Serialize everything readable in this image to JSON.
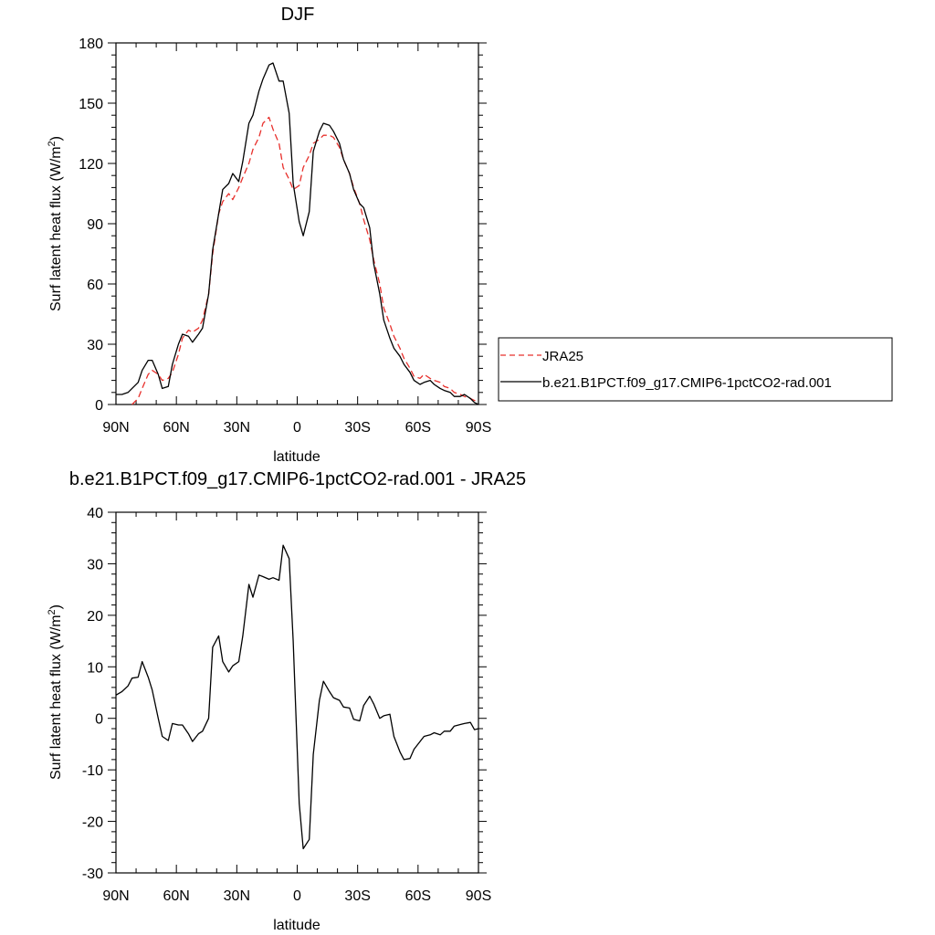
{
  "colors": {
    "jra25": "#e8302c",
    "model": "#000000",
    "axis": "#000000",
    "legend_border": "#000000"
  },
  "chart_data": [
    {
      "type": "line",
      "title": "DJF",
      "xlabel": "latitude",
      "ylabel": "Surf latent heat flux (W/m",
      "ylabel_sup": "2",
      "ylabel_close": ")",
      "xlim": [
        90,
        -90
      ],
      "ylim": [
        0,
        180
      ],
      "xticks": [
        90,
        60,
        30,
        0,
        -30,
        -60,
        -90
      ],
      "xtick_labels": [
        "90N",
        "60N",
        "30N",
        "0",
        "30S",
        "60S",
        "90S"
      ],
      "yticks": [
        0,
        30,
        60,
        90,
        120,
        150,
        180
      ],
      "ytick_labels": [
        "0",
        "30",
        "60",
        "90",
        "120",
        "150",
        "180"
      ],
      "grid": false,
      "legend_position": "right",
      "series": [
        {
          "name": "JRA25",
          "style": "dashed",
          "x": [
            82,
            79,
            77,
            74,
            72,
            69,
            67,
            64,
            62,
            59,
            57,
            54,
            52,
            49,
            47,
            44,
            42,
            39,
            37,
            34,
            32,
            29,
            27,
            24,
            22,
            19,
            17,
            14,
            12,
            9,
            7,
            4,
            2,
            -1,
            -3,
            -6,
            -8,
            -11,
            -13,
            -16,
            -18,
            -21,
            -23,
            -26,
            -28,
            -31,
            -33,
            -36,
            -38,
            -41,
            -43,
            -46,
            -48,
            -51,
            -53,
            -56,
            -58,
            -61,
            -63,
            -66,
            -68,
            -71,
            -73,
            -76,
            -78,
            -81,
            -83,
            -86,
            -88,
            -90
          ],
          "y": [
            0,
            3,
            8,
            15,
            17,
            15,
            12,
            13,
            16,
            25,
            33,
            37,
            36,
            38,
            42,
            55,
            75,
            95,
            101,
            105,
            102,
            108,
            113,
            120,
            127,
            133,
            140,
            143,
            137,
            130,
            118,
            112,
            107,
            109,
            118,
            124,
            130,
            132,
            134,
            134,
            133,
            128,
            122,
            115,
            108,
            100,
            92,
            82,
            72,
            60,
            48,
            40,
            34,
            28,
            23,
            18,
            14,
            13,
            15,
            13,
            12,
            11,
            9,
            8,
            6,
            5,
            4,
            3,
            2,
            2
          ]
        },
        {
          "name": "b.e21.B1PCT.f09_g17.CMIP6-1pctCO2-rad.001",
          "style": "solid",
          "x": [
            90,
            87,
            84,
            82,
            79,
            77,
            74,
            72,
            69,
            67,
            64,
            62,
            59,
            57,
            54,
            52,
            49,
            47,
            44,
            42,
            39,
            37,
            34,
            32,
            29,
            27,
            24,
            22,
            19,
            17,
            14,
            12,
            9,
            7,
            4,
            2,
            -1,
            -3,
            -6,
            -8,
            -11,
            -13,
            -16,
            -18,
            -21,
            -23,
            -26,
            -28,
            -31,
            -33,
            -36,
            -38,
            -41,
            -43,
            -46,
            -48,
            -51,
            -53,
            -56,
            -58,
            -61,
            -63,
            -66,
            -68,
            -71,
            -73,
            -76,
            -78,
            -81,
            -83,
            -86,
            -88,
            -90
          ],
          "y": [
            5,
            5,
            6,
            8,
            11,
            17,
            22,
            22,
            15,
            8,
            9,
            20,
            30,
            35,
            34,
            31,
            35,
            38,
            55,
            77,
            95,
            107,
            110,
            115,
            111,
            121,
            140,
            144,
            156,
            162,
            169,
            170,
            161,
            161,
            145,
            110,
            91,
            84,
            96,
            126,
            136,
            140,
            139,
            136,
            130,
            122,
            115,
            107,
            100,
            98,
            88,
            70,
            55,
            42,
            33,
            28,
            24,
            20,
            16,
            12,
            10,
            11,
            12,
            10,
            8,
            7,
            6,
            4,
            4,
            5,
            3,
            1,
            0
          ]
        }
      ]
    },
    {
      "type": "line",
      "title": "b.e21.B1PCT.f09_g17.CMIP6-1pctCO2-rad.001 - JRA25",
      "xlabel": "latitude",
      "ylabel": "Surf latent heat flux (W/m",
      "ylabel_sup": "2",
      "ylabel_close": ")",
      "xlim": [
        90,
        -90
      ],
      "ylim": [
        -30,
        40
      ],
      "xticks": [
        90,
        60,
        30,
        0,
        -30,
        -60,
        -90
      ],
      "xtick_labels": [
        "90N",
        "60N",
        "30N",
        "0",
        "30S",
        "60S",
        "90S"
      ],
      "yticks": [
        -30,
        -20,
        -10,
        0,
        10,
        20,
        30,
        40
      ],
      "ytick_labels": [
        "-30",
        "-20",
        "-10",
        "0",
        "10",
        "20",
        "30",
        "40"
      ],
      "grid": false,
      "series": [
        {
          "style": "solid",
          "x": [
            90,
            87,
            84,
            82,
            79,
            77,
            74,
            72,
            69,
            67,
            64,
            62,
            59,
            57,
            54,
            52,
            49,
            47,
            44,
            42,
            39,
            37,
            34,
            32,
            29,
            27,
            24,
            22,
            19,
            17,
            14,
            12,
            9,
            7,
            4,
            2,
            -1,
            -3,
            -6,
            -8,
            -11,
            -13,
            -16,
            -18,
            -21,
            -23,
            -26,
            -28,
            -31,
            -33,
            -36,
            -38,
            -41,
            -43,
            -46,
            -48,
            -51,
            -53,
            -56,
            -58,
            -61,
            -63,
            -66,
            -68,
            -71,
            -73,
            -76,
            -78,
            -81,
            -83,
            -86,
            -88,
            -90
          ],
          "y": [
            4.5,
            5.2,
            6.3,
            7.8,
            8.0,
            11.0,
            8.0,
            5.5,
            0.0,
            -3.5,
            -4.3,
            -1.0,
            -1.3,
            -1.3,
            -3.0,
            -4.5,
            -3.0,
            -2.5,
            0.0,
            13.8,
            16.0,
            11.0,
            9.0,
            10.2,
            11.0,
            16.0,
            26.0,
            23.5,
            27.8,
            27.5,
            27.0,
            27.3,
            26.8,
            33.6,
            31.0,
            15.0,
            -16.5,
            -25.3,
            -23.5,
            -7.0,
            3.5,
            7.2,
            5.2,
            4.0,
            3.5,
            2.2,
            2.0,
            -0.2,
            -0.5,
            2.5,
            4.3,
            2.8,
            0.0,
            0.5,
            0.8,
            -3.5,
            -6.5,
            -8.0,
            -7.8,
            -6.0,
            -4.5,
            -3.5,
            -3.2,
            -2.8,
            -3.2,
            -2.5,
            -2.5,
            -1.5,
            -1.2,
            -1.0,
            -0.8,
            -2.2,
            -2.0
          ]
        }
      ]
    }
  ]
}
